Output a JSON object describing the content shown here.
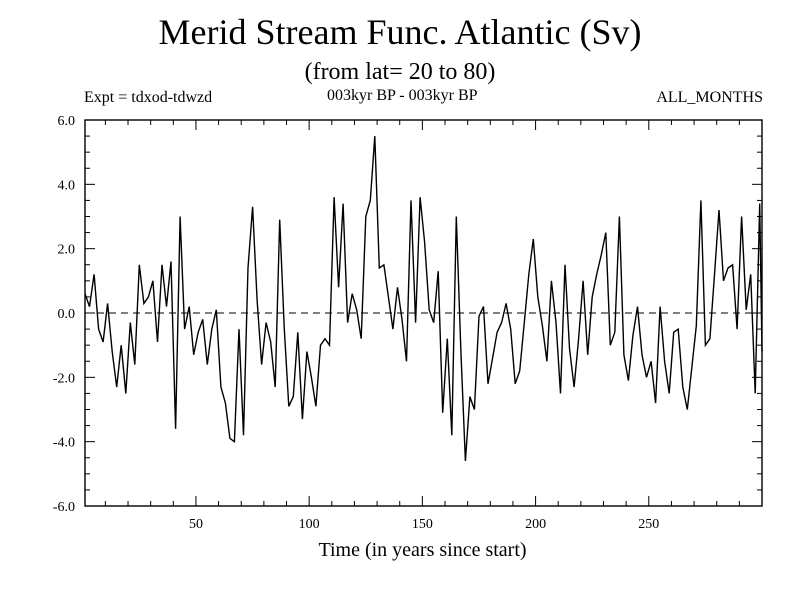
{
  "header": {
    "title": "Merid Stream Func. Atlantic (Sv)",
    "subtitle": "(from lat= 20 to 80)",
    "expt": "Expt = tdxod-tdwzd",
    "period": "003kyr BP - 003kyr BP",
    "months": "ALL_MONTHS"
  },
  "chart_data": {
    "type": "line",
    "title": "Merid Stream Func. Atlantic (Sv)",
    "subtitle": "(from lat= 20 to 80)",
    "xlabel": "Time (in years since start)",
    "ylabel": "",
    "xlim": [
      1,
      300
    ],
    "ylim": [
      -6.0,
      6.0
    ],
    "x_ticks": [
      50,
      100,
      150,
      200,
      250
    ],
    "x_tick_labels": [
      "50",
      "100",
      "150",
      "200",
      "250"
    ],
    "y_ticks": [
      -6.0,
      -4.0,
      -2.0,
      0.0,
      2.0,
      4.0,
      6.0
    ],
    "y_tick_labels": [
      "-6.0",
      "-4.0",
      "-2.0",
      "0.0",
      "2.0",
      "4.0",
      "6.0"
    ],
    "zero_line": true,
    "grid": false,
    "legend": false,
    "line_color": "#000000",
    "series": [
      {
        "x": [
          1,
          3,
          5,
          7,
          9,
          11,
          13,
          15,
          17,
          19,
          21,
          23,
          25,
          27,
          29,
          31,
          33,
          35,
          37,
          39,
          41,
          43,
          45,
          47,
          49,
          51,
          53,
          55,
          57,
          59,
          61,
          63,
          65,
          67,
          69,
          71,
          73,
          75,
          77,
          79,
          81,
          83,
          85,
          87,
          89,
          91,
          93,
          95,
          97,
          99,
          101,
          103,
          105,
          107,
          109,
          111,
          113,
          115,
          117,
          119,
          121,
          123,
          125,
          127,
          129,
          131,
          133,
          135,
          137,
          139,
          141,
          143,
          145,
          147,
          149,
          151,
          153,
          155,
          157,
          159,
          161,
          163,
          165,
          167,
          169,
          171,
          173,
          175,
          177,
          179,
          181,
          183,
          185,
          187,
          189,
          191,
          193,
          195,
          197,
          199,
          201,
          203,
          205,
          207,
          209,
          211,
          213,
          215,
          217,
          219,
          221,
          223,
          225,
          227,
          229,
          231,
          233,
          235,
          237,
          239,
          241,
          243,
          245,
          247,
          249,
          251,
          253,
          255,
          257,
          259,
          261,
          263,
          265,
          267,
          269,
          271,
          273,
          275,
          277,
          279,
          281,
          283,
          285,
          287,
          289,
          291,
          293,
          295,
          297,
          299,
          300
        ],
        "values": [
          0.6,
          0.2,
          1.2,
          -0.5,
          -0.9,
          0.3,
          -1.2,
          -2.3,
          -1.0,
          -2.5,
          -0.3,
          -1.6,
          1.5,
          0.3,
          0.5,
          1.0,
          -0.9,
          1.5,
          0.2,
          1.6,
          -3.6,
          3.0,
          -0.5,
          0.2,
          -1.3,
          -0.6,
          -0.2,
          -1.6,
          -0.5,
          0.1,
          -2.3,
          -2.8,
          -3.9,
          -4.0,
          -0.5,
          -3.8,
          1.4,
          3.3,
          0.4,
          -1.6,
          -0.3,
          -0.9,
          -2.3,
          2.9,
          -0.5,
          -2.9,
          -2.6,
          -0.6,
          -3.3,
          -1.2,
          -2.0,
          -2.9,
          -1.0,
          -0.8,
          -1.0,
          3.6,
          0.8,
          3.4,
          -0.3,
          0.6,
          0.1,
          -0.8,
          3.0,
          3.5,
          5.5,
          1.4,
          1.5,
          0.5,
          -0.5,
          0.8,
          -0.2,
          -1.5,
          3.5,
          -0.3,
          3.6,
          2.2,
          0.1,
          -0.3,
          1.3,
          -3.1,
          -0.8,
          -3.8,
          3.0,
          -1.2,
          -4.6,
          -2.6,
          -3.0,
          -0.1,
          0.2,
          -2.2,
          -1.4,
          -0.6,
          -0.3,
          0.3,
          -0.5,
          -2.2,
          -1.8,
          -0.3,
          1.2,
          2.3,
          0.5,
          -0.4,
          -1.5,
          1.0,
          -0.3,
          -2.5,
          1.5,
          -1.1,
          -2.3,
          -0.8,
          1.0,
          -1.3,
          0.5,
          1.2,
          1.8,
          2.5,
          -1.0,
          -0.6,
          3.0,
          -1.3,
          -2.1,
          -0.7,
          0.2,
          -1.3,
          -2.0,
          -1.5,
          -2.8,
          0.2,
          -1.5,
          -2.5,
          -0.6,
          -0.5,
          -2.3,
          -3.0,
          -1.7,
          -0.4,
          3.5,
          -1.0,
          -0.8,
          1.2,
          3.2,
          1.0,
          1.4,
          1.5,
          -0.5,
          3.0,
          0.1,
          1.2,
          -2.5,
          3.4,
          -1.2
        ]
      }
    ]
  }
}
